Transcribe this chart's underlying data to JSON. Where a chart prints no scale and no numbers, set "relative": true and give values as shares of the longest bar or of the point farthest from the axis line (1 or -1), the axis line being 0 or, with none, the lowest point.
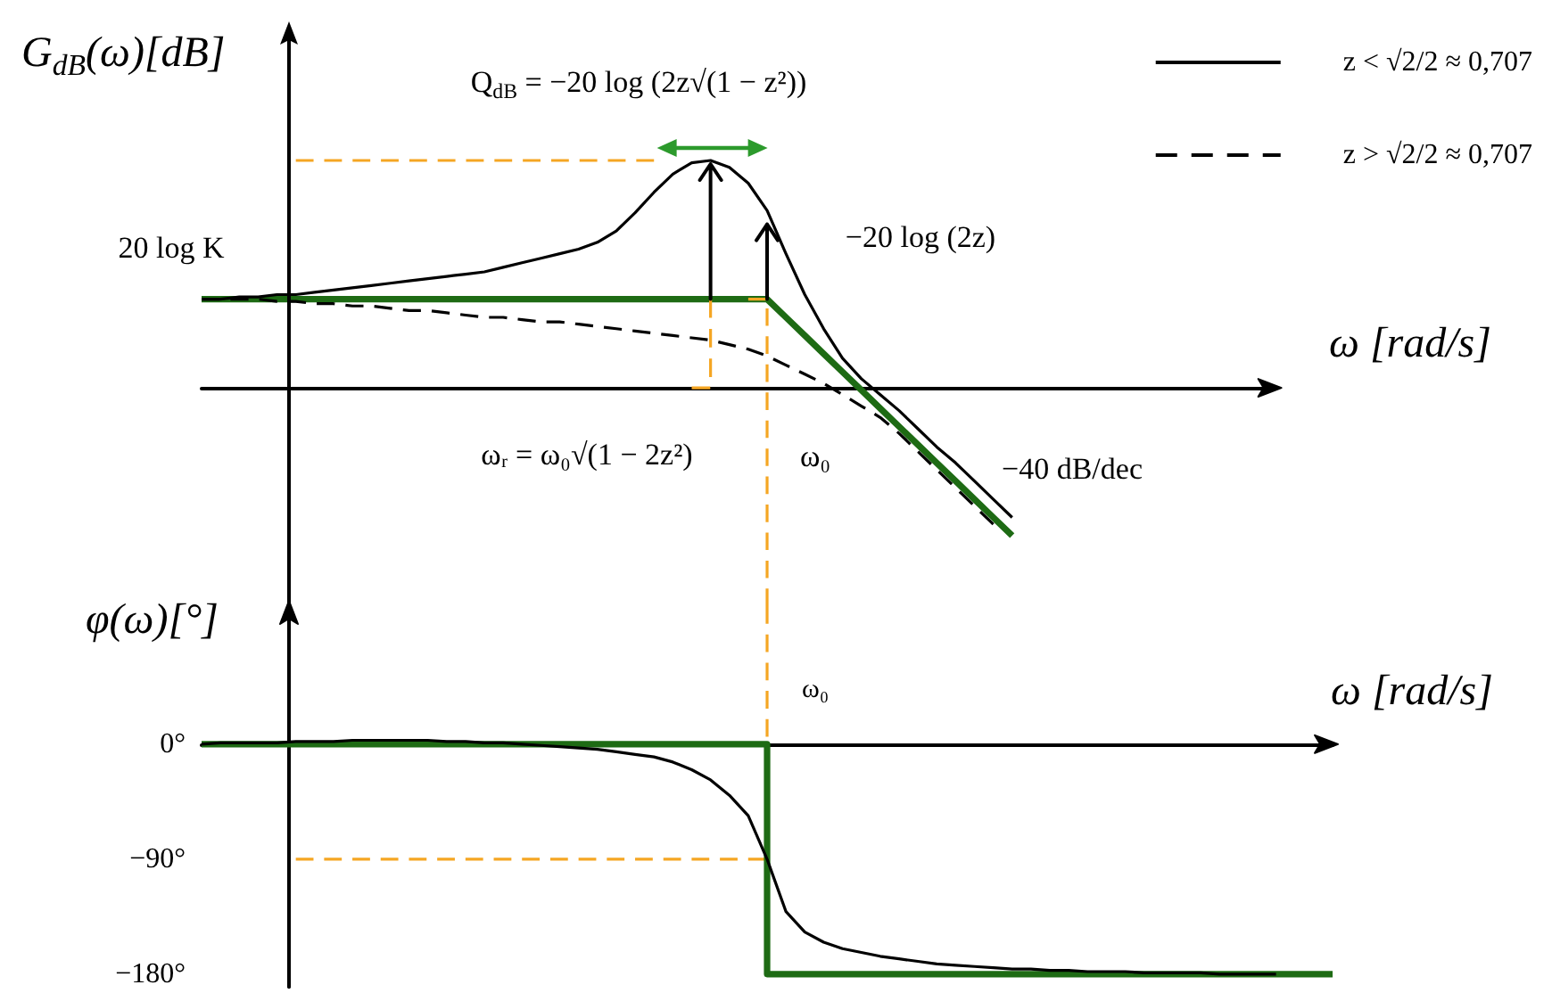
{
  "chart_data": [
    {
      "type": "line",
      "relative": true,
      "legend": "top right",
      "marker": "none",
      "tick_labels": false,
      "xlabel": "ω [rad/s]",
      "ylabel": "G$_{dB}$(ω)[dB]",
      "annotations": [
        "Q$_{dB}$ = −20 log (2z√(1 − z²))",
        "20 log K",
        "−20 log (2z)",
        "−40 dB/dec",
        "ωᵣ = ω₀√(1 − 2z²)",
        "ω₀"
      ],
      "categories": [
        null,
        null,
        null,
        null,
        null,
        null,
        null,
        null,
        null,
        null,
        null,
        null,
        null,
        null,
        null,
        null,
        null,
        null,
        null,
        null,
        null,
        null,
        null,
        null,
        null,
        null,
        null,
        null,
        null,
        null,
        null,
        null,
        null,
        null,
        null,
        null,
        null,
        null,
        null,
        null,
        null,
        null,
        null,
        null,
        null,
        null,
        null,
        null,
        null,
        null,
        null,
        null,
        null,
        null,
        null,
        null,
        null,
        null
      ],
      "series": [
        {
          "name": "z < √2/2 ≈ 0,707",
          "color": "#000000",
          "values": [
            0.39,
            0.39,
            0.4,
            0.4,
            0.41,
            0.41,
            0.42,
            0.43,
            0.44,
            0.45,
            0.46,
            0.47,
            0.48,
            0.49,
            0.5,
            0.51,
            0.53,
            0.55,
            0.57,
            0.59,
            0.61,
            0.64,
            0.69,
            0.77,
            0.86,
            0.94,
            0.99,
            1,
            0.97,
            0.9,
            0.78,
            0.59,
            0.41,
            0.26,
            0.13,
            0.04,
            -0.03,
            -0.1,
            -0.18,
            -0.26,
            -0.33,
            -0.41,
            -0.49,
            -0.57,
            null,
            null,
            null,
            null,
            null,
            null,
            null,
            null,
            null,
            null,
            null,
            null,
            null,
            null
          ]
        },
        {
          "name": "z > √2/2 ≈ 0,707",
          "color": "#000000",
          "line_style": "dashed",
          "values": [
            0.39,
            0.39,
            0.39,
            0.39,
            0.38,
            0.38,
            0.37,
            0.37,
            0.36,
            0.36,
            0.35,
            0.34,
            0.34,
            0.33,
            0.32,
            0.31,
            0.31,
            0.3,
            0.29,
            0.29,
            0.28,
            0.27,
            0.26,
            0.25,
            0.24,
            0.23,
            0.22,
            0.21,
            0.19,
            0.17,
            0.14,
            0.1,
            0.06,
            0.02,
            -0.03,
            -0.08,
            -0.13,
            -0.2,
            -0.28,
            -0.36,
            -0.44,
            -0.52,
            -0.6,
            null,
            null,
            null,
            null,
            null,
            null,
            null,
            null,
            null,
            null,
            null,
            null,
            null,
            null,
            null
          ]
        },
        {
          "color": "#1e6b14",
          "values": [
            0.39,
            0.39,
            0.39,
            0.39,
            0.39,
            0.39,
            0.39,
            0.39,
            0.39,
            0.39,
            0.39,
            0.39,
            0.39,
            0.39,
            0.39,
            0.39,
            0.39,
            0.39,
            0.39,
            0.39,
            0.39,
            0.39,
            0.39,
            0.39,
            0.39,
            0.39,
            0.39,
            0.39,
            0.39,
            0.39,
            0.39,
            0.31,
            0.23,
            0.15,
            0.07,
            -0.01,
            -0.09,
            -0.17,
            -0.25,
            -0.33,
            -0.41,
            -0.49,
            -0.57,
            -0.65,
            null,
            null,
            null,
            null,
            null,
            null,
            null,
            null,
            null,
            null,
            null,
            null,
            null,
            null
          ]
        },
        {
          "color": "#f5a623",
          "line_style": "dashed",
          "values": [
            null,
            null,
            null,
            null,
            null,
            1,
            1,
            1,
            1,
            1,
            1,
            1,
            1,
            1,
            1,
            1,
            1,
            1,
            1,
            1,
            1,
            1,
            1,
            1,
            1,
            null,
            null,
            null,
            null,
            null,
            null,
            null,
            null,
            null,
            null,
            null,
            null,
            null,
            null,
            null,
            null,
            null,
            null,
            null,
            null,
            null,
            null,
            null,
            null,
            null,
            null,
            null,
            null,
            null,
            null,
            null,
            null,
            null
          ]
        },
        {
          "type": "step",
          "color": "#f5a623",
          "line_style": "dashed",
          "values": [
            null,
            null,
            null,
            null,
            null,
            null,
            null,
            null,
            null,
            null,
            null,
            null,
            null,
            null,
            null,
            null,
            null,
            null,
            null,
            null,
            null,
            null,
            null,
            null,
            null,
            null,
            0,
            0.39,
            null,
            null,
            null,
            null,
            null,
            null,
            null,
            null,
            null,
            null,
            null,
            null,
            null,
            null,
            null,
            null,
            null,
            null,
            null,
            null,
            null,
            null,
            null,
            null,
            null,
            null,
            null,
            null,
            null,
            null
          ]
        },
        {
          "type": "step",
          "color": "#f5a623",
          "line_style": "dashed",
          "values": [
            null,
            null,
            null,
            null,
            null,
            null,
            null,
            null,
            null,
            null,
            null,
            null,
            null,
            null,
            null,
            null,
            null,
            null,
            null,
            null,
            null,
            null,
            null,
            null,
            null,
            null,
            null,
            null,
            null,
            0.39,
            -0.96,
            null,
            null,
            null,
            null,
            null,
            null,
            null,
            null,
            null,
            null,
            null,
            null,
            null,
            null,
            null,
            null,
            null,
            null,
            null,
            null,
            null,
            null,
            null,
            null,
            null,
            null,
            null
          ]
        }
      ]
    },
    {
      "type": "line",
      "marker": "none",
      "tick_labels": "y",
      "xlabel": "ω [rad/s]",
      "ylabel": "φ(ω)[°]",
      "ylim": [
        -190,
        108
      ],
      "yticks": [
        {
          "value": 0,
          "label": "0°"
        },
        {
          "value": -90,
          "label": "−90°"
        },
        {
          "value": -180,
          "label": "−180°"
        }
      ],
      "annotations": [
        "ω₀"
      ],
      "categories": [
        null,
        null,
        null,
        null,
        null,
        null,
        null,
        null,
        null,
        null,
        null,
        null,
        null,
        null,
        null,
        null,
        null,
        null,
        null,
        null,
        null,
        null,
        null,
        null,
        null,
        null,
        null,
        null,
        null,
        null,
        null,
        null,
        null,
        null,
        null,
        null,
        null,
        null,
        null,
        null,
        null,
        null,
        null,
        null,
        null,
        null,
        null,
        null,
        null,
        null,
        null,
        null,
        null,
        null,
        null,
        null,
        null,
        null,
        null,
        null,
        null
      ],
      "series": [
        {
          "color": "#000000",
          "values": [
            0,
            1,
            1,
            1,
            1,
            2,
            2,
            2,
            3,
            3,
            3,
            3,
            3,
            2,
            2,
            1,
            1,
            0,
            -1,
            -2,
            -3,
            -4,
            -6,
            -8,
            -10,
            -14,
            -20,
            -28,
            -40,
            -56,
            -90,
            -131,
            -147,
            -155,
            -160,
            -163,
            -166,
            -168,
            -170,
            -172,
            -173,
            -174,
            -175,
            -176,
            -176,
            -177,
            -177,
            -178,
            -178,
            -178,
            -179,
            -179,
            -179,
            -179,
            -180,
            -180,
            -180,
            -180,
            null,
            null,
            null
          ]
        },
        {
          "type": "step",
          "color": "#1e6b14",
          "values": [
            0,
            0,
            0,
            0,
            0,
            0,
            0,
            0,
            0,
            0,
            0,
            0,
            0,
            0,
            0,
            0,
            0,
            0,
            0,
            0,
            0,
            0,
            0,
            0,
            0,
            0,
            0,
            0,
            0,
            0,
            -180,
            -180,
            -180,
            -180,
            -180,
            -180,
            -180,
            -180,
            -180,
            -180,
            -180,
            -180,
            -180,
            -180,
            -180,
            -180,
            -180,
            -180,
            -180,
            -180,
            -180,
            -180,
            -180,
            -180,
            -180,
            -180,
            -180,
            -180,
            -180,
            -180,
            -180
          ]
        },
        {
          "type": "step",
          "color": "#f5a623",
          "line_style": "dashed",
          "values": [
            null,
            null,
            null,
            null,
            null,
            -90,
            -90,
            -90,
            -90,
            -90,
            -90,
            -90,
            -90,
            -90,
            -90,
            -90,
            -90,
            -90,
            -90,
            -90,
            -90,
            -90,
            -90,
            -90,
            -90,
            -90,
            -90,
            -90,
            -90,
            -90,
            108,
            null,
            null,
            null,
            null,
            null,
            null,
            null,
            null,
            null,
            null,
            null,
            null,
            null,
            null,
            null,
            null,
            null,
            null,
            null,
            null,
            null,
            null,
            null,
            null,
            null,
            null,
            null,
            null,
            null,
            null
          ]
        }
      ]
    }
  ]
}
